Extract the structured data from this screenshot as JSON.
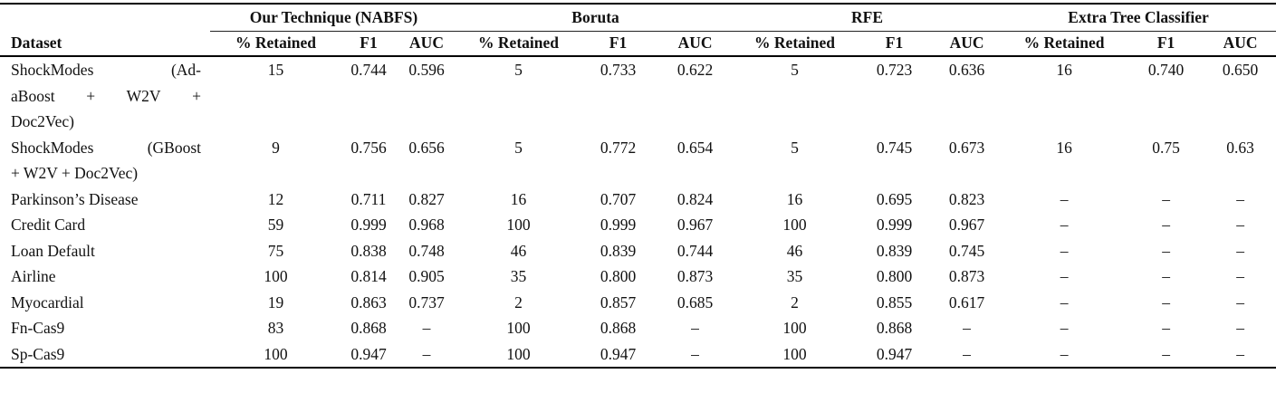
{
  "table": {
    "column_header": "Dataset",
    "groups": [
      {
        "label": "Our Technique (NABFS)"
      },
      {
        "label": "Boruta"
      },
      {
        "label": "RFE"
      },
      {
        "label": "Extra Tree Classifier"
      }
    ],
    "sub_headers": [
      "% Retained",
      "F1",
      "AUC"
    ],
    "na_marker": "–",
    "rows": [
      {
        "dataset": "ShockModes (AdaBoost + W2V + Doc2Vec)",
        "dataset_lines": [
          "ShockModes (Ad-",
          "aBoost + W2V +",
          "Doc2Vec)"
        ],
        "values": [
          "15",
          "0.744",
          "0.596",
          "5",
          "0.733",
          "0.622",
          "5",
          "0.723",
          "0.636",
          "16",
          "0.740",
          "0.650"
        ]
      },
      {
        "dataset": "ShockModes (GBoost + W2V + Doc2Vec)",
        "dataset_lines": [
          "ShockModes (GBoost",
          "+ W2V + Doc2Vec)"
        ],
        "values": [
          "9",
          "0.756",
          "0.656",
          "5",
          "0.772",
          "0.654",
          "5",
          "0.745",
          "0.673",
          "16",
          "0.75",
          "0.63"
        ]
      },
      {
        "dataset": "Parkinson’s Disease",
        "dataset_lines": [
          "Parkinson’s Disease"
        ],
        "values": [
          "12",
          "0.711",
          "0.827",
          "16",
          "0.707",
          "0.824",
          "16",
          "0.695",
          "0.823",
          "–",
          "–",
          "–"
        ]
      },
      {
        "dataset": "Credit Card",
        "dataset_lines": [
          "Credit Card"
        ],
        "values": [
          "59",
          "0.999",
          "0.968",
          "100",
          "0.999",
          "0.967",
          "100",
          "0.999",
          "0.967",
          "–",
          "–",
          "–"
        ]
      },
      {
        "dataset": "Loan Default",
        "dataset_lines": [
          "Loan Default"
        ],
        "values": [
          "75",
          "0.838",
          "0.748",
          "46",
          "0.839",
          "0.744",
          "46",
          "0.839",
          "0.745",
          "–",
          "–",
          "–"
        ]
      },
      {
        "dataset": "Airline",
        "dataset_lines": [
          "Airline"
        ],
        "values": [
          "100",
          "0.814",
          "0.905",
          "35",
          "0.800",
          "0.873",
          "35",
          "0.800",
          "0.873",
          "–",
          "–",
          "–"
        ]
      },
      {
        "dataset": "Myocardial",
        "dataset_lines": [
          "Myocardial"
        ],
        "values": [
          "19",
          "0.863",
          "0.737",
          "2",
          "0.857",
          "0.685",
          "2",
          "0.855",
          "0.617",
          "–",
          "–",
          "–"
        ]
      },
      {
        "dataset": "Fn-Cas9",
        "dataset_lines": [
          "Fn-Cas9"
        ],
        "values": [
          "83",
          "0.868",
          "–",
          "100",
          "0.868",
          "–",
          "100",
          "0.868",
          "–",
          "–",
          "–",
          "–"
        ]
      },
      {
        "dataset": "Sp-Cas9",
        "dataset_lines": [
          "Sp-Cas9"
        ],
        "values": [
          "100",
          "0.947",
          "–",
          "100",
          "0.947",
          "–",
          "100",
          "0.947",
          "–",
          "–",
          "–",
          "–"
        ]
      }
    ],
    "colors": {
      "text": "#111111",
      "rule": "#000000",
      "background": "#ffffff"
    }
  }
}
